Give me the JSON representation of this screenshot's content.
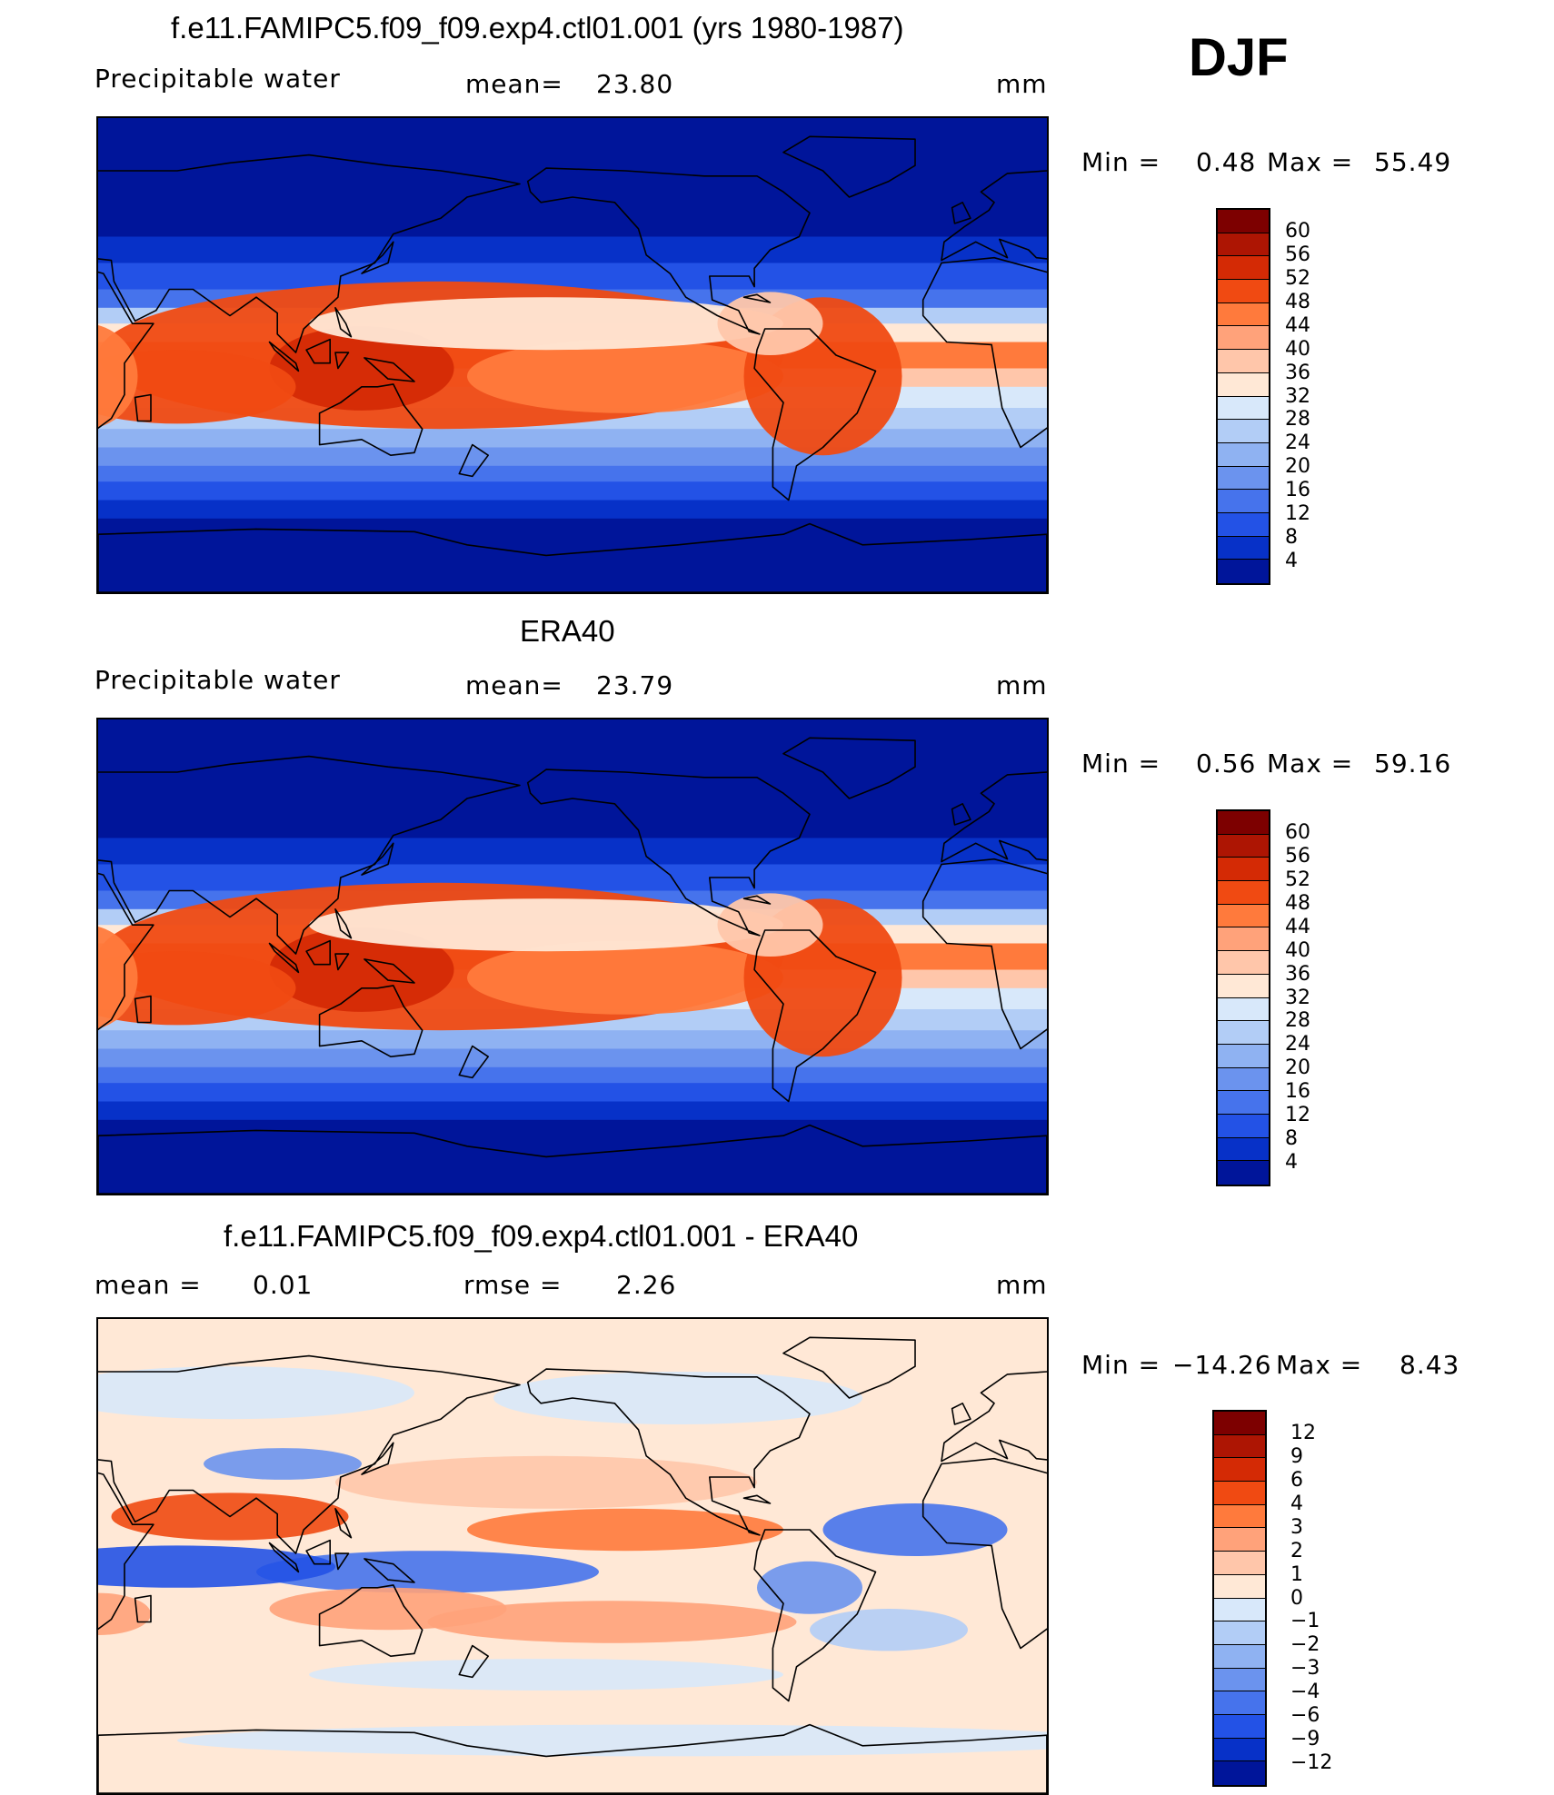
{
  "season": "DJF",
  "panels": [
    {
      "title": "f.e11.FAMIPC5.f09_f09.exp4.ctl01.001 (yrs 1980-1987)",
      "left_label": "Precipitable  water",
      "mean_label": "mean=",
      "mean_value": "23.80",
      "units": "mm",
      "min_label": "Min  =",
      "min_value": "0.48",
      "max_label": "Max  =",
      "max_value": "55.49",
      "kind": "model"
    },
    {
      "title": "ERA40",
      "left_label": "Precipitable  water",
      "mean_label": "mean=",
      "mean_value": "23.79",
      "units": "mm",
      "min_label": "Min  =",
      "min_value": "0.56",
      "max_label": "Max  =",
      "max_value": "59.16",
      "kind": "obs"
    },
    {
      "title": "f.e11.FAMIPC5.f09_f09.exp4.ctl01.001 - ERA40",
      "left_label": "mean  =",
      "left_value": "0.01",
      "mean_label": "rmse  =",
      "mean_value": "2.26",
      "units": "mm",
      "min_label": "Min  =",
      "min_value": "−14.26",
      "max_label": "Max  =",
      "max_value": "8.43",
      "kind": "diff"
    }
  ],
  "colorbars": {
    "abs": {
      "labels": [
        "60",
        "56",
        "52",
        "48",
        "44",
        "40",
        "36",
        "32",
        "28",
        "24",
        "20",
        "16",
        "12",
        "8",
        "4"
      ],
      "colors": [
        "#7d0000",
        "#ad1503",
        "#d42a05",
        "#f04a12",
        "#ff7a3c",
        "#ffa27a",
        "#ffc6aa",
        "#ffe8d6",
        "#d8e8fa",
        "#b2cdf6",
        "#8fb2f2",
        "#6b93ee",
        "#4673ec",
        "#2352e6",
        "#0731c8",
        "#00159a"
      ]
    },
    "diff": {
      "labels": [
        "12",
        "9",
        "6",
        "4",
        "3",
        "2",
        "1",
        "0",
        "−1",
        "−2",
        "−3",
        "−4",
        "−6",
        "−9",
        "−12"
      ],
      "colors": [
        "#7d0000",
        "#ad1503",
        "#d42a05",
        "#f04a12",
        "#ff7a3c",
        "#ffa27a",
        "#ffc6aa",
        "#ffe8d6",
        "#d8e8fa",
        "#b2cdf6",
        "#8fb2f2",
        "#6b93ee",
        "#4673ec",
        "#2352e6",
        "#0731c8",
        "#00159a"
      ]
    }
  }
}
